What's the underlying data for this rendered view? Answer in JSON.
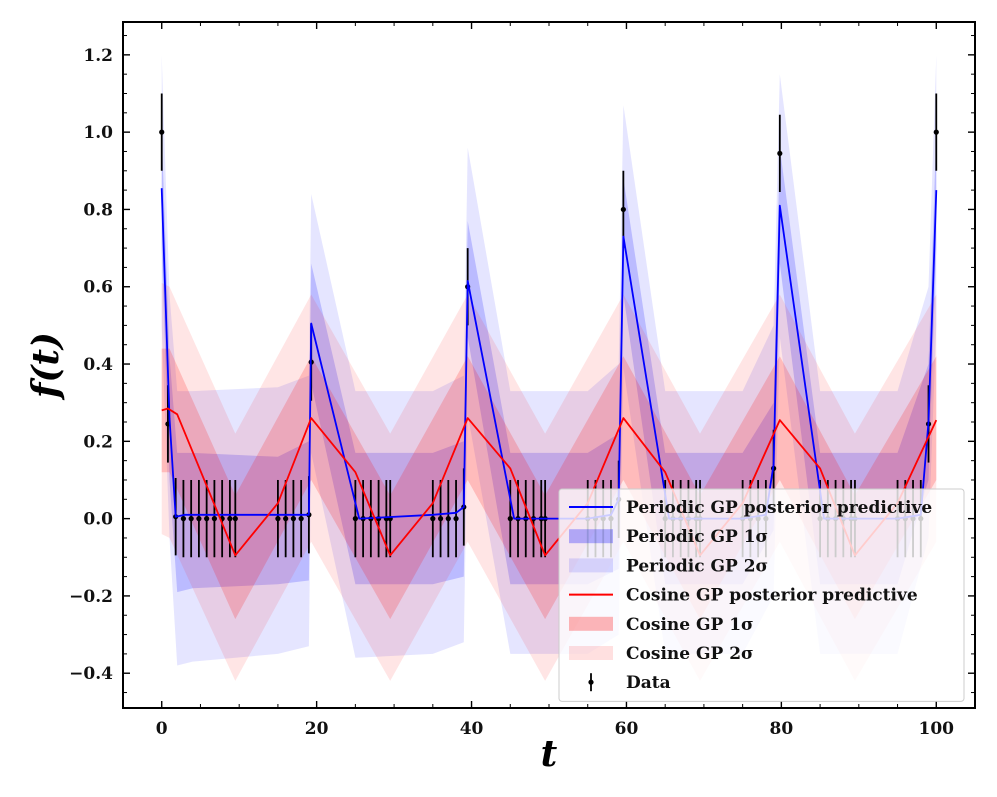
{
  "chart_data": {
    "type": "line",
    "title": "",
    "xlabel": "t",
    "ylabel": "f(t)",
    "xlim": [
      -5,
      105
    ],
    "ylim": [
      -0.49,
      1.285
    ],
    "xticks": [
      0,
      20,
      40,
      60,
      80,
      100
    ],
    "xtick_labels": [
      "0",
      "20",
      "40",
      "60",
      "80",
      "100"
    ],
    "yticks": [
      -0.4,
      -0.2,
      0.0,
      0.2,
      0.4,
      0.6,
      0.8,
      1.0,
      1.2
    ],
    "ytick_labels": [
      "−0.4",
      "−0.2",
      "0.0",
      "0.2",
      "0.4",
      "0.6",
      "0.8",
      "1.0",
      "1.2"
    ],
    "legend_position": "lower-right",
    "colors": {
      "periodic": "#0000ff",
      "cosine": "#ff0000",
      "data": "#000000"
    },
    "series": [
      {
        "name": "Periodic GP posterior predictive",
        "kind": "line",
        "color": "#0000ff",
        "x": [
          0,
          1,
          1.8,
          3,
          4.2,
          15,
          16,
          18,
          19,
          19.3,
          25.5,
          35,
          38,
          39,
          39.5,
          45.5,
          55,
          58,
          59,
          59.6,
          65.5,
          75,
          78,
          79,
          79.8,
          85.5,
          95,
          98,
          99,
          100
        ],
        "y": [
          0.855,
          0.26,
          0.005,
          0.01,
          0.01,
          0.01,
          0.01,
          0.01,
          0.01,
          0.505,
          0.0,
          0.01,
          0.015,
          0.03,
          0.615,
          0.0,
          0.0,
          0.01,
          0.05,
          0.73,
          0.0,
          0.0,
          0.01,
          0.14,
          0.81,
          0.0,
          0.0,
          0.01,
          0.25,
          0.85
        ]
      },
      {
        "name": "Periodic GP 1σ",
        "kind": "band",
        "color": "#0000ff",
        "x": [
          0,
          1,
          2,
          4,
          15,
          19,
          19.3,
          25,
          35,
          39,
          39.5,
          45,
          55,
          59,
          59.6,
          65,
          75,
          79,
          79.8,
          85,
          95,
          99,
          100
        ],
        "upper": [
          1.0,
          0.42,
          0.17,
          0.17,
          0.16,
          0.2,
          0.66,
          0.17,
          0.17,
          0.2,
          0.77,
          0.17,
          0.17,
          0.22,
          0.88,
          0.17,
          0.17,
          0.3,
          0.96,
          0.17,
          0.17,
          0.4,
          1.0
        ],
        "lower": [
          0.7,
          0.1,
          -0.19,
          -0.18,
          -0.17,
          -0.16,
          0.35,
          -0.17,
          -0.17,
          -0.15,
          0.47,
          -0.17,
          -0.17,
          -0.13,
          0.58,
          -0.17,
          -0.17,
          -0.03,
          0.66,
          -0.17,
          -0.17,
          0.1,
          0.7
        ]
      },
      {
        "name": "Periodic GP 2σ",
        "kind": "band",
        "color": "#0000ff",
        "x": [
          0,
          1,
          2,
          4,
          15,
          19,
          19.3,
          25,
          35,
          39,
          39.5,
          45,
          55,
          59,
          59.6,
          65,
          75,
          79,
          79.8,
          85,
          95,
          99,
          100
        ],
        "upper": [
          1.2,
          0.58,
          0.33,
          0.33,
          0.34,
          0.37,
          0.84,
          0.33,
          0.33,
          0.37,
          0.96,
          0.33,
          0.33,
          0.4,
          1.07,
          0.33,
          0.33,
          0.5,
          1.15,
          0.33,
          0.33,
          0.6,
          1.2
        ],
        "lower": [
          0.5,
          -0.05,
          -0.38,
          -0.37,
          -0.35,
          -0.33,
          0.17,
          -0.36,
          -0.35,
          -0.32,
          0.27,
          -0.35,
          -0.35,
          -0.3,
          0.39,
          -0.35,
          -0.35,
          -0.2,
          0.47,
          -0.35,
          -0.35,
          -0.05,
          0.5
        ]
      },
      {
        "name": "Cosine GP posterior predictive",
        "kind": "line",
        "color": "#ff0000",
        "x": [
          0,
          0.8,
          2,
          9.5,
          15,
          19.3,
          25,
          29.5,
          35,
          39.5,
          45,
          49.5,
          55,
          59.6,
          65,
          69.5,
          75,
          79.8,
          85,
          89.5,
          95,
          100
        ],
        "y": [
          0.28,
          0.285,
          0.27,
          -0.095,
          0.04,
          0.26,
          0.12,
          -0.095,
          0.04,
          0.26,
          0.13,
          -0.095,
          0.04,
          0.26,
          0.12,
          -0.095,
          0.04,
          0.255,
          0.13,
          -0.095,
          0.04,
          0.255
        ]
      },
      {
        "name": "Cosine GP 1σ",
        "kind": "band",
        "color": "#ff0000",
        "x": [
          0,
          1,
          9.5,
          19.3,
          29.5,
          39.5,
          49.5,
          59.6,
          69.5,
          79.8,
          89.5,
          100
        ],
        "upper": [
          0.44,
          0.44,
          0.06,
          0.42,
          0.06,
          0.42,
          0.06,
          0.42,
          0.06,
          0.42,
          0.06,
          0.42
        ],
        "lower": [
          0.12,
          0.12,
          -0.26,
          0.1,
          -0.26,
          0.1,
          -0.26,
          0.1,
          -0.26,
          0.1,
          -0.26,
          0.1
        ]
      },
      {
        "name": "Cosine GP 2σ",
        "kind": "band",
        "color": "#ff0000",
        "x": [
          0,
          1,
          9.5,
          19.3,
          29.5,
          39.5,
          49.5,
          59.6,
          69.5,
          79.8,
          89.5,
          100
        ],
        "upper": [
          0.61,
          0.6,
          0.22,
          0.58,
          0.22,
          0.58,
          0.22,
          0.58,
          0.22,
          0.58,
          0.22,
          0.58
        ],
        "lower": [
          -0.04,
          -0.05,
          -0.42,
          -0.06,
          -0.42,
          -0.06,
          -0.42,
          -0.06,
          -0.42,
          -0.06,
          -0.42,
          -0.06
        ]
      },
      {
        "name": "Data",
        "kind": "errorbar",
        "color": "#000000",
        "yerr": 0.1,
        "x": [
          0,
          0.8,
          1.8,
          2.8,
          3.8,
          4.8,
          5.8,
          6.8,
          7.8,
          8.8,
          9.5,
          15,
          16,
          17,
          18,
          19,
          19.3,
          25,
          26,
          27,
          28,
          29,
          29.5,
          35,
          36,
          37,
          38,
          39,
          39.5,
          45,
          46,
          47,
          48,
          49,
          49.5,
          55,
          56,
          57,
          58,
          59,
          59.6,
          65,
          66,
          67,
          68,
          69,
          69.5,
          75,
          76,
          77,
          78,
          79,
          79.8,
          85,
          86,
          87,
          88,
          89,
          89.5,
          95,
          96,
          97,
          98,
          99,
          100
        ],
        "y": [
          1.0,
          0.245,
          0.005,
          0.0,
          0.0,
          0.0,
          0.0,
          0.0,
          0.0,
          0.0,
          0.0,
          0.0,
          0.0,
          0.0,
          0.0,
          0.01,
          0.405,
          0.0,
          0.0,
          0.0,
          0.0,
          0.0,
          0.0,
          0.0,
          0.0,
          0.0,
          0.0,
          0.03,
          0.6,
          0.0,
          0.0,
          0.0,
          0.0,
          0.0,
          0.0,
          0.0,
          0.0,
          0.0,
          0.0,
          0.05,
          0.8,
          0.0,
          0.0,
          0.0,
          0.0,
          0.0,
          0.0,
          0.0,
          0.0,
          0.0,
          0.0,
          0.13,
          0.945,
          0.0,
          0.0,
          0.0,
          0.0,
          0.0,
          0.0,
          0.0,
          0.0,
          0.0,
          0.0,
          0.245,
          1.0
        ]
      }
    ]
  },
  "legend": {
    "items": [
      {
        "label": "Periodic GP posterior predictive",
        "kind": "line",
        "color": "#0000ff"
      },
      {
        "label": "Periodic GP 1σ",
        "kind": "band1",
        "color": "#0000ff"
      },
      {
        "label": "Periodic GP 2σ",
        "kind": "band2",
        "color": "#0000ff"
      },
      {
        "label": "Cosine GP posterior predictive",
        "kind": "line",
        "color": "#ff0000"
      },
      {
        "label": "Cosine GP 1σ",
        "kind": "band1",
        "color": "#ff0000"
      },
      {
        "label": "Cosine GP 2σ",
        "kind": "band2",
        "color": "#ff0000"
      },
      {
        "label": "Data",
        "kind": "errorbar",
        "color": "#000000"
      }
    ]
  }
}
